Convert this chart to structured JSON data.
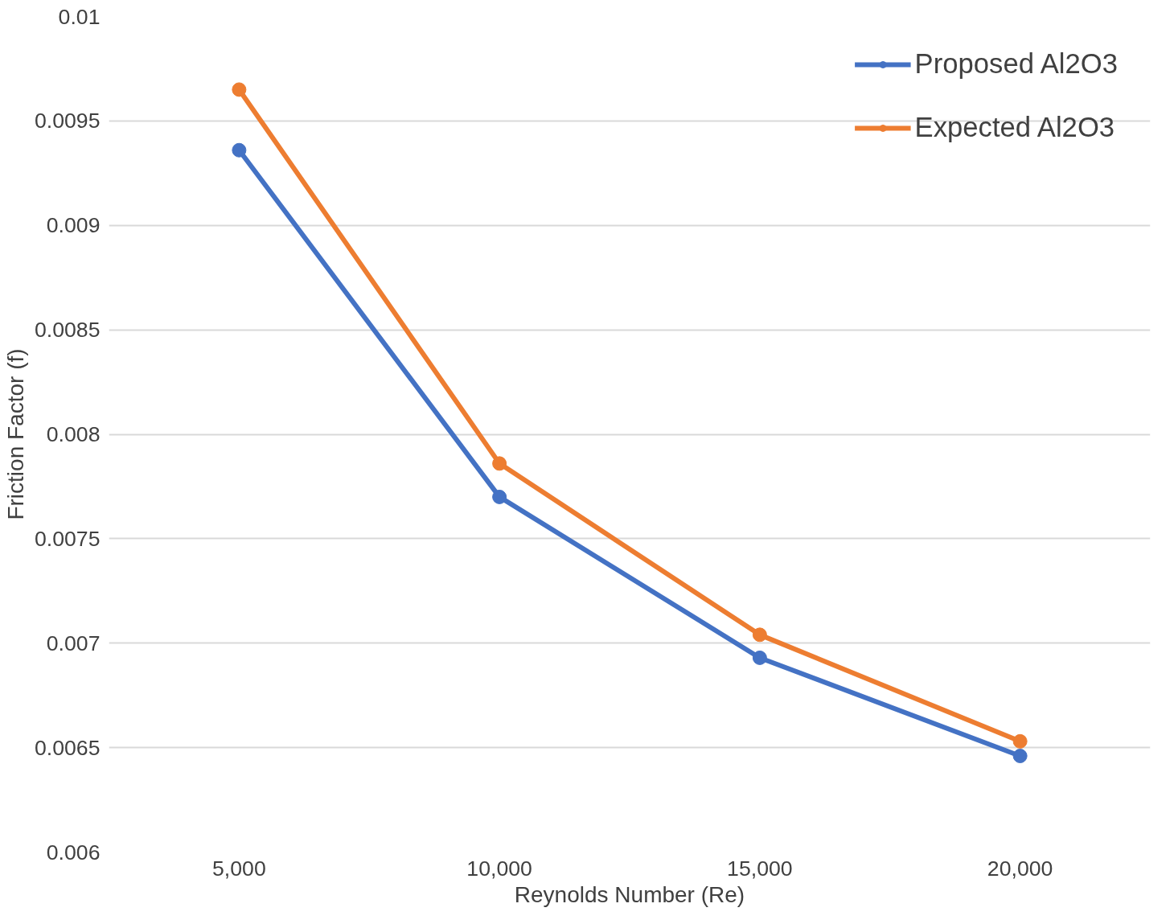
{
  "chart_data": {
    "type": "line",
    "xlabel": "Reynolds Number (Re)",
    "ylabel": "Friction Factor (f)",
    "categories": [
      "5,000",
      "10,000",
      "15,000",
      "20,000"
    ],
    "series": [
      {
        "name": "Proposed Al2O3",
        "color": "#4472c4",
        "values": [
          0.00936,
          0.0077,
          0.00693,
          0.00646
        ]
      },
      {
        "name": "Expected Al2O3",
        "color": "#ed7d31",
        "values": [
          0.00965,
          0.00786,
          0.00704,
          0.00653
        ]
      }
    ],
    "ylim": [
      0.006,
      0.01
    ],
    "yticks": [
      0.006,
      0.0065,
      0.007,
      0.0075,
      0.008,
      0.0085,
      0.009,
      0.0095,
      0.01
    ],
    "grid": "y",
    "legend": "top right",
    "marker": "circle",
    "line_style": "solid"
  }
}
